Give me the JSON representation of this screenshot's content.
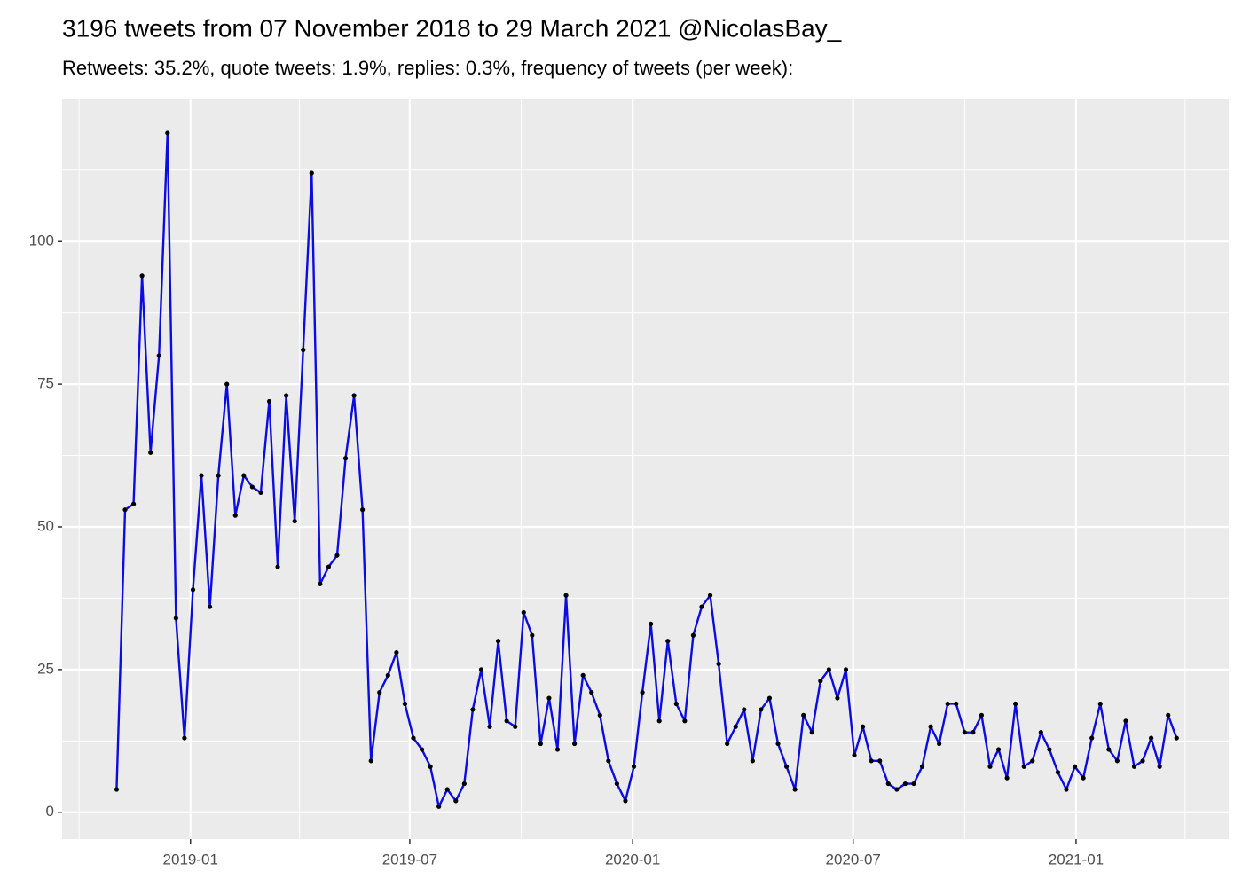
{
  "chart_data": {
    "type": "line",
    "title": "3196 tweets from 07 November 2018 to 29 March 2021 @NicolasBay_",
    "subtitle": "Retweets: 35.2%, quote tweets: 1.9%, replies: 0.3%, frequency of tweets (per week):",
    "x": [
      "2018-11-01",
      "2018-11-08",
      "2018-11-15",
      "2018-11-22",
      "2018-11-29",
      "2018-12-06",
      "2018-12-13",
      "2018-12-20",
      "2018-12-27",
      "2019-01-03",
      "2019-01-10",
      "2019-01-17",
      "2019-01-24",
      "2019-01-31",
      "2019-02-07",
      "2019-02-14",
      "2019-02-21",
      "2019-02-28",
      "2019-03-07",
      "2019-03-14",
      "2019-03-21",
      "2019-03-28",
      "2019-04-04",
      "2019-04-11",
      "2019-04-18",
      "2019-04-25",
      "2019-05-02",
      "2019-05-09",
      "2019-05-16",
      "2019-05-23",
      "2019-05-30",
      "2019-06-06",
      "2019-06-13",
      "2019-06-20",
      "2019-06-27",
      "2019-07-04",
      "2019-07-11",
      "2019-07-18",
      "2019-07-25",
      "2019-08-01",
      "2019-08-08",
      "2019-08-15",
      "2019-08-22",
      "2019-08-29",
      "2019-09-05",
      "2019-09-12",
      "2019-09-19",
      "2019-09-26",
      "2019-10-03",
      "2019-10-10",
      "2019-10-17",
      "2019-10-24",
      "2019-10-31",
      "2019-11-07",
      "2019-11-14",
      "2019-11-21",
      "2019-11-28",
      "2019-12-05",
      "2019-12-12",
      "2019-12-19",
      "2019-12-26",
      "2020-01-02",
      "2020-01-09",
      "2020-01-16",
      "2020-01-23",
      "2020-01-30",
      "2020-02-06",
      "2020-02-13",
      "2020-02-20",
      "2020-02-27",
      "2020-03-05",
      "2020-03-12",
      "2020-03-19",
      "2020-03-26",
      "2020-04-02",
      "2020-04-09",
      "2020-04-16",
      "2020-04-23",
      "2020-04-30",
      "2020-05-07",
      "2020-05-14",
      "2020-05-21",
      "2020-05-28",
      "2020-06-04",
      "2020-06-11",
      "2020-06-18",
      "2020-06-25",
      "2020-07-02",
      "2020-07-09",
      "2020-07-16",
      "2020-07-23",
      "2020-07-30",
      "2020-08-06",
      "2020-08-13",
      "2020-08-20",
      "2020-08-27",
      "2020-09-03",
      "2020-09-10",
      "2020-09-17",
      "2020-09-24",
      "2020-10-01",
      "2020-10-08",
      "2020-10-15",
      "2020-10-22",
      "2020-10-29",
      "2020-11-05",
      "2020-11-12",
      "2020-11-19",
      "2020-11-26",
      "2020-12-03",
      "2020-12-10",
      "2020-12-17",
      "2020-12-24",
      "2020-12-31",
      "2021-01-07",
      "2021-01-14",
      "2021-01-21",
      "2021-01-28",
      "2021-02-04",
      "2021-02-11",
      "2021-02-18",
      "2021-02-25",
      "2021-03-04",
      "2021-03-11",
      "2021-03-18",
      "2021-03-25"
    ],
    "values": [
      4,
      53,
      54,
      94,
      63,
      80,
      119,
      34,
      13,
      39,
      59,
      36,
      59,
      75,
      52,
      59,
      57,
      56,
      72,
      43,
      73,
      51,
      81,
      112,
      40,
      43,
      45,
      62,
      73,
      53,
      9,
      21,
      24,
      28,
      19,
      13,
      11,
      8,
      1,
      4,
      2,
      5,
      18,
      25,
      15,
      30,
      16,
      15,
      35,
      31,
      12,
      20,
      11,
      38,
      12,
      24,
      21,
      17,
      9,
      5,
      2,
      8,
      21,
      33,
      16,
      30,
      19,
      16,
      31,
      36,
      38,
      26,
      12,
      15,
      18,
      9,
      18,
      20,
      12,
      8,
      4,
      17,
      14,
      23,
      25,
      20,
      25,
      10,
      15,
      9,
      9,
      5,
      4,
      5,
      5,
      8,
      15,
      12,
      19,
      19,
      14,
      14,
      17,
      8,
      11,
      6,
      19,
      8,
      9,
      14,
      11,
      7,
      4,
      8,
      6,
      13,
      19,
      11,
      9,
      16,
      8,
      9,
      13,
      8,
      17,
      13
    ],
    "color": "#0c0ce0",
    "point_color": "#000000",
    "xlim": [
      "2018-09-17",
      "2021-05-07"
    ],
    "xticks": [
      {
        "value": "2019-01-01",
        "label": "2019-01"
      },
      {
        "value": "2019-07-01",
        "label": "2019-07"
      },
      {
        "value": "2020-01-01",
        "label": "2020-01"
      },
      {
        "value": "2020-07-01",
        "label": "2020-07"
      },
      {
        "value": "2021-01-01",
        "label": "2021-01"
      }
    ],
    "xminorticks": [
      "2018-10-01",
      "2019-04-01",
      "2019-10-01",
      "2020-04-01",
      "2020-10-01",
      "2021-04-01"
    ],
    "ylim": [
      -4.7,
      124.9
    ],
    "yticks": [
      0,
      25,
      50,
      75,
      100
    ],
    "yminorticks": [
      12.5,
      37.5,
      62.5,
      87.5,
      112.5
    ],
    "grid": true
  }
}
